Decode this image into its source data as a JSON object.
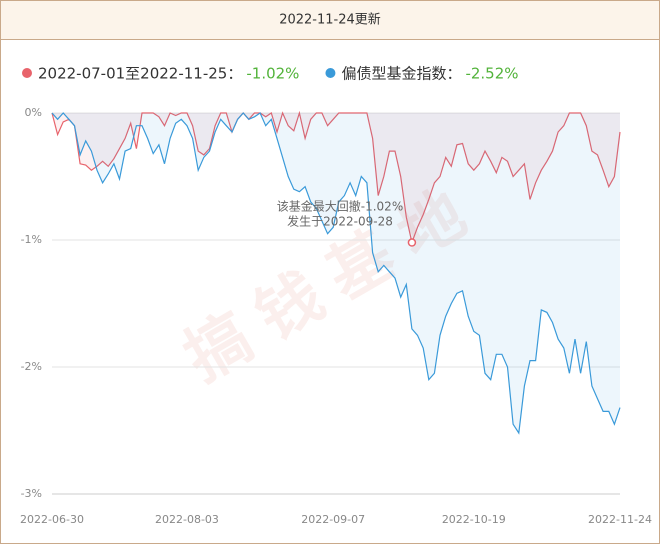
{
  "chart_data": {
    "type": "line",
    "title": "2022-11-24更新",
    "watermark": "搞钱基地",
    "annotation": [
      "该基金最大回撤-1.02%",
      "发生于2022-09-28"
    ],
    "categories": [
      "2022-06-30",
      null,
      null,
      null,
      null,
      null,
      null,
      null,
      null,
      null,
      null,
      null,
      null,
      null,
      null,
      null,
      null,
      null,
      null,
      null,
      null,
      null,
      null,
      null,
      "2022-08-03",
      null,
      null,
      null,
      null,
      null,
      null,
      null,
      null,
      null,
      null,
      null,
      null,
      null,
      null,
      null,
      null,
      null,
      null,
      null,
      null,
      null,
      null,
      null,
      null,
      null,
      "2022-09-07",
      null,
      null,
      null,
      null,
      null,
      null,
      null,
      null,
      null,
      null,
      null,
      null,
      null,
      null,
      null,
      null,
      null,
      null,
      null,
      null,
      null,
      null,
      null,
      null,
      "2022-10-19",
      null,
      null,
      null,
      null,
      null,
      null,
      null,
      null,
      null,
      null,
      null,
      null,
      null,
      null,
      null,
      null,
      null,
      null,
      null,
      null,
      null,
      null,
      null,
      null,
      null,
      "2022-11-24"
    ],
    "series": [
      {
        "name": "2022-07-01至2022-11-25：",
        "summary_label": "-1.02%",
        "color": "#e8636b",
        "fill": "rgba(232,99,107,0.09)",
        "values": [
          0,
          -0.17,
          -0.07,
          -0.05,
          -0.1,
          -0.4,
          -0.41,
          -0.45,
          -0.42,
          -0.38,
          -0.42,
          -0.36,
          -0.28,
          -0.2,
          -0.08,
          -0.28,
          0,
          0,
          0,
          -0.03,
          -0.1,
          0,
          -0.02,
          0,
          0,
          -0.1,
          -0.3,
          -0.33,
          -0.28,
          -0.1,
          0,
          0,
          -0.15,
          -0.05,
          0,
          -0.05,
          0,
          0,
          -0.03,
          0,
          -0.15,
          0,
          -0.1,
          -0.14,
          0,
          -0.2,
          -0.05,
          0,
          0,
          -0.1,
          -0.05,
          0,
          0,
          0,
          0,
          0,
          0,
          -0.2,
          -0.65,
          -0.5,
          -0.3,
          -0.3,
          -0.5,
          -0.82,
          -1.02,
          -0.9,
          -0.8,
          -0.68,
          -0.55,
          -0.5,
          -0.35,
          -0.42,
          -0.25,
          -0.24,
          -0.4,
          -0.45,
          -0.4,
          -0.3,
          -0.38,
          -0.47,
          -0.35,
          -0.38,
          -0.5,
          -0.45,
          -0.4,
          -0.68,
          -0.55,
          -0.45,
          -0.38,
          -0.3,
          -0.15,
          -0.1,
          0,
          0,
          0,
          -0.1,
          -0.3,
          -0.33,
          -0.45,
          -0.58,
          -0.5,
          -0.15
        ]
      },
      {
        "name": "偏债型基金指数：",
        "summary_label": "-2.52%",
        "color": "#3a9ad9",
        "fill": "rgba(58,154,217,0.09)",
        "values": [
          0,
          -0.05,
          0,
          -0.05,
          -0.1,
          -0.33,
          -0.22,
          -0.3,
          -0.45,
          -0.55,
          -0.48,
          -0.4,
          -0.52,
          -0.3,
          -0.28,
          -0.1,
          -0.1,
          -0.2,
          -0.32,
          -0.25,
          -0.4,
          -0.2,
          -0.08,
          -0.05,
          -0.1,
          -0.2,
          -0.45,
          -0.35,
          -0.3,
          -0.15,
          -0.05,
          -0.1,
          -0.15,
          -0.05,
          0,
          -0.05,
          -0.03,
          0,
          -0.1,
          -0.05,
          -0.2,
          -0.35,
          -0.5,
          -0.6,
          -0.62,
          -0.58,
          -0.7,
          -0.75,
          -0.85,
          -0.95,
          -0.9,
          -0.7,
          -0.65,
          -0.55,
          -0.65,
          -0.5,
          -0.55,
          -1.1,
          -1.25,
          -1.2,
          -1.25,
          -1.3,
          -1.45,
          -1.35,
          -1.7,
          -1.75,
          -1.85,
          -2.1,
          -2.05,
          -1.75,
          -1.6,
          -1.5,
          -1.42,
          -1.4,
          -1.6,
          -1.72,
          -1.75,
          -2.05,
          -2.1,
          -1.9,
          -1.9,
          -2.0,
          -2.45,
          -2.52,
          -2.15,
          -1.95,
          -1.95,
          -1.55,
          -1.57,
          -1.65,
          -1.78,
          -1.85,
          -2.05,
          -1.78,
          -2.05,
          -1.8,
          -2.15,
          -2.25,
          -2.35,
          -2.35,
          -2.45,
          -2.32
        ]
      }
    ],
    "summary_color": "#52b33a",
    "ylim": [
      -3,
      0
    ],
    "yticks": [
      {
        "value": 0,
        "label": "0%"
      },
      {
        "value": -1,
        "label": "-1%"
      },
      {
        "value": -2,
        "label": "-2%"
      },
      {
        "value": -3,
        "label": "-3%"
      }
    ],
    "grid": true
  }
}
